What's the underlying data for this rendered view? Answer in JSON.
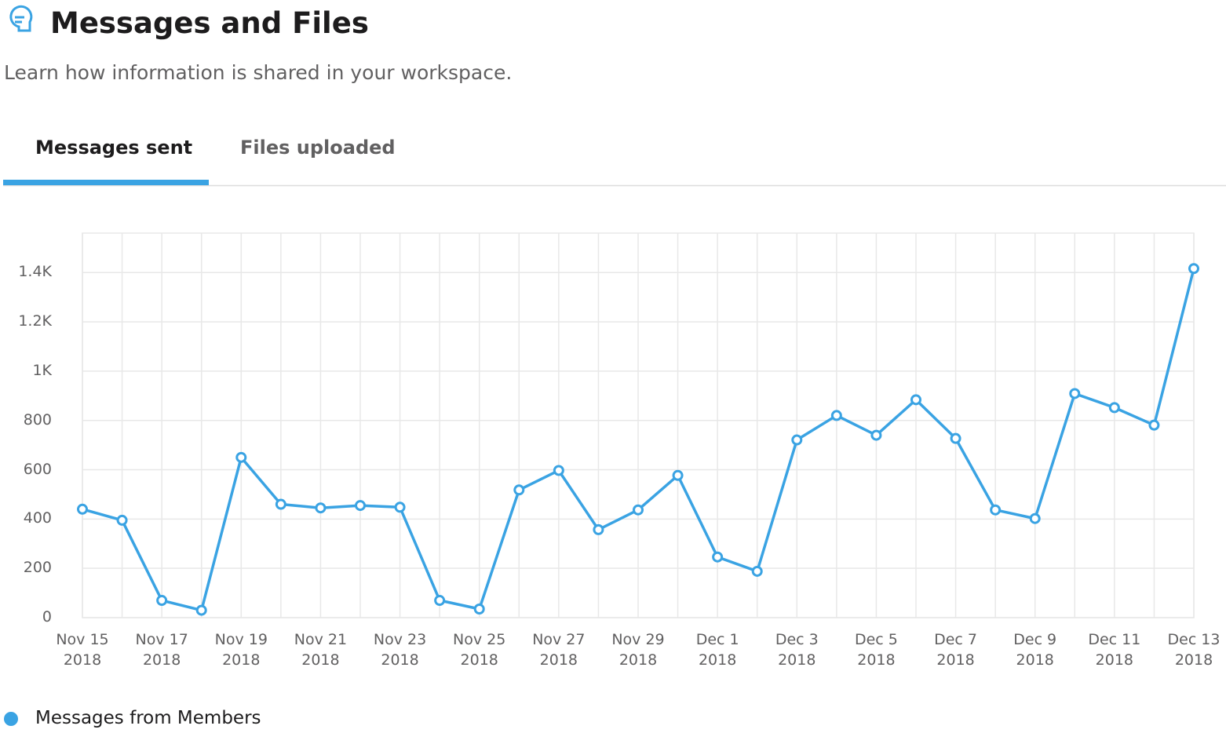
{
  "header": {
    "title": "Messages and Files",
    "subtitle": "Learn how information is shared in your workspace."
  },
  "tabs": [
    {
      "label": "Messages sent",
      "active": true
    },
    {
      "label": "Files uploaded",
      "active": false
    }
  ],
  "chart_data": {
    "type": "line",
    "categories": [
      "Nov 15\n2018",
      null,
      "Nov 17\n2018",
      null,
      "Nov 19\n2018",
      null,
      "Nov 21\n2018",
      null,
      "Nov 23\n2018",
      null,
      "Nov 25\n2018",
      null,
      "Nov 27\n2018",
      null,
      "Nov 29\n2018",
      null,
      "Dec 1\n2018",
      null,
      "Dec 3\n2018",
      null,
      "Dec 5\n2018",
      null,
      "Dec 7\n2018",
      null,
      "Dec 9\n2018",
      null,
      "Dec 11\n2018",
      null,
      "Dec 13\n2018"
    ],
    "series": [
      {
        "name": "Messages from Members",
        "color": "#3aa3e3",
        "values": [
          440,
          395,
          70,
          30,
          650,
          460,
          445,
          455,
          448,
          70,
          35,
          518,
          597,
          357,
          437,
          577,
          246,
          188,
          721,
          820,
          740,
          884,
          727,
          437,
          402,
          909,
          852,
          781,
          1416
        ]
      }
    ],
    "ylim": [
      0,
      1560
    ],
    "yticks": [
      0,
      200,
      400,
      600,
      800,
      {
        "value": 1000,
        "label": "1K"
      },
      {
        "value": 1200,
        "label": "1.2K"
      },
      {
        "value": 1400,
        "label": "1.4K"
      }
    ],
    "grid": true,
    "legend": "bottom-left"
  }
}
